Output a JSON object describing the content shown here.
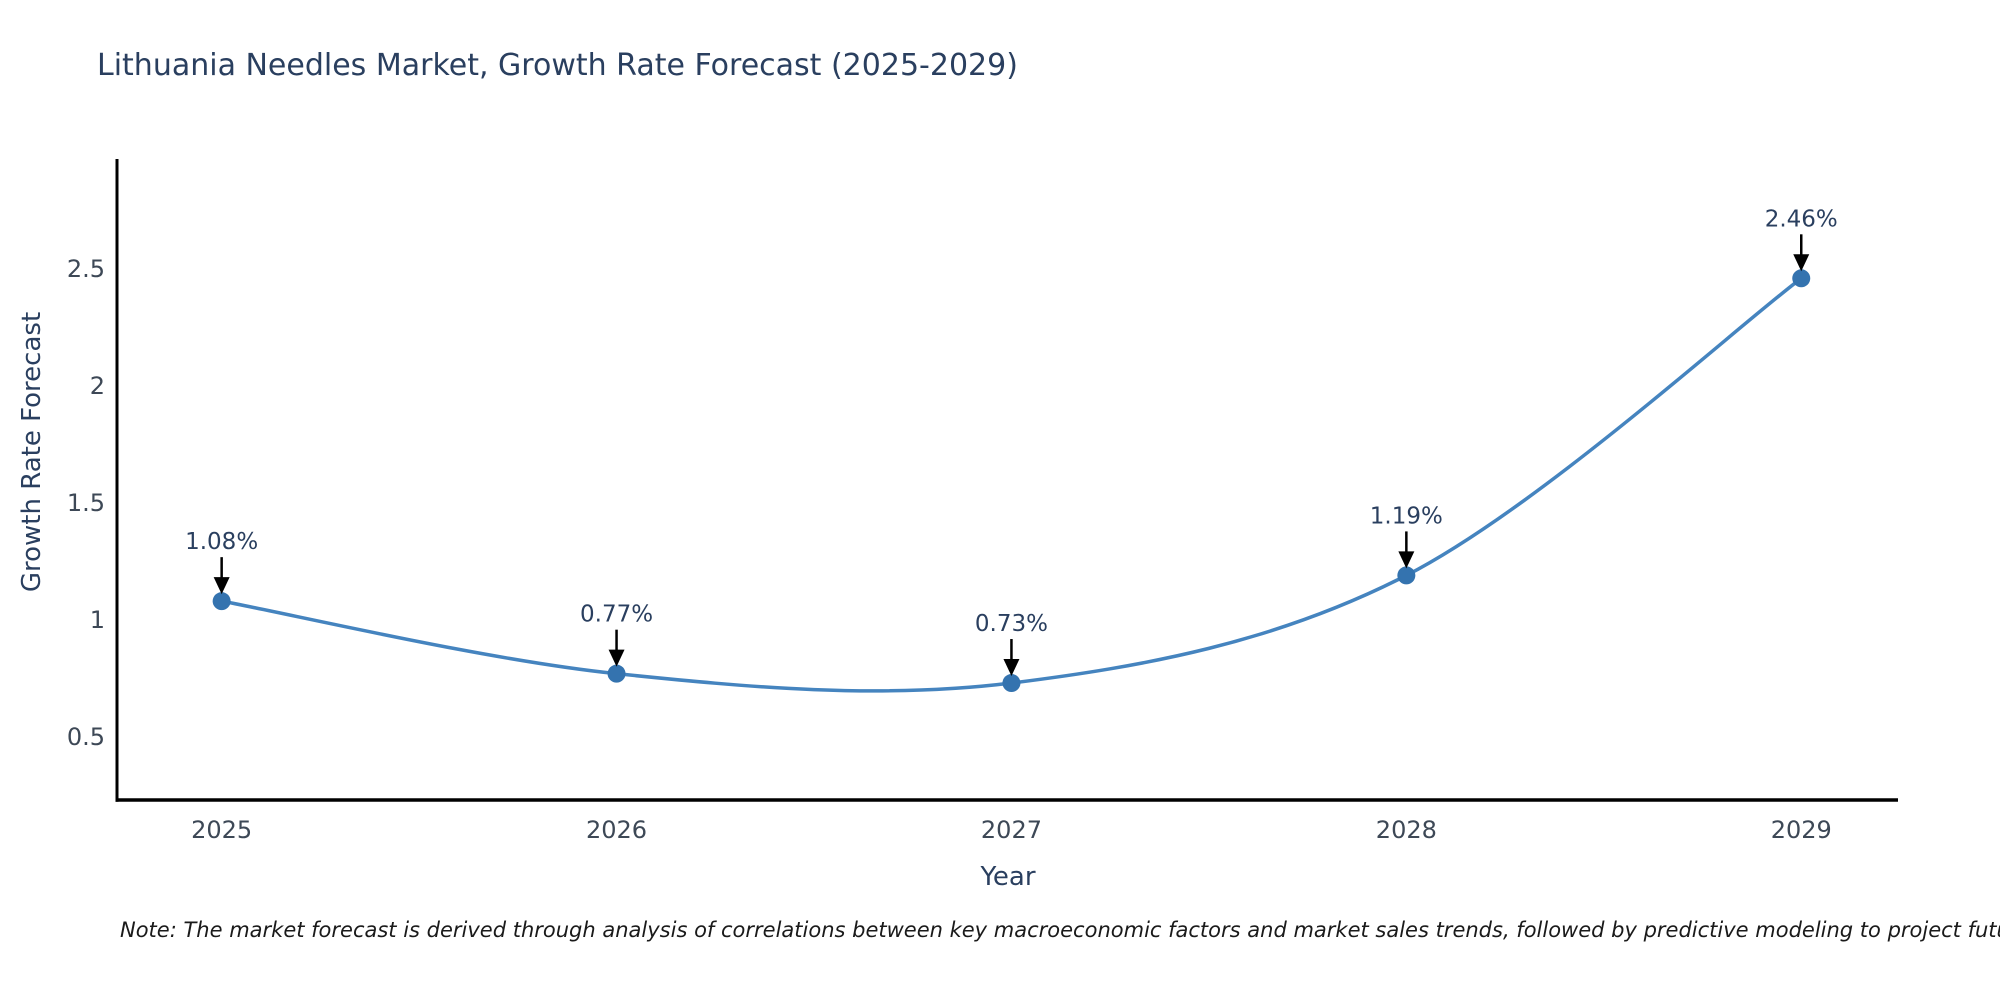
{
  "title": {
    "text": "Lithuania Needles Market, Growth Rate Forecast (2025-2029)"
  },
  "note": {
    "text": "Note: The market forecast is derived through analysis of correlations between key macroeconomic factors and market sales trends, followed by predictive modeling to project future sales"
  },
  "chart_data": {
    "type": "line",
    "title": "Lithuania Needles Market, Growth Rate Forecast (2025-2029)",
    "xlabel": "Year",
    "ylabel": "Growth Rate Forecast",
    "categories": [
      "2025",
      "2026",
      "2027",
      "2028",
      "2029"
    ],
    "x": [
      2025,
      2026,
      2027,
      2028,
      2029
    ],
    "series": [
      {
        "name": "Growth Rate Forecast",
        "values": [
          1.08,
          0.77,
          0.73,
          1.19,
          2.46
        ]
      }
    ],
    "point_labels": [
      "1.08%",
      "0.77%",
      "0.73%",
      "1.19%",
      "2.46%"
    ],
    "yticks": [
      0.5,
      1,
      1.5,
      2,
      2.5
    ],
    "ytick_labels": [
      "0.5",
      "1",
      "1.5",
      "2",
      "2.5"
    ],
    "xlim": [
      2024.735,
      2029.245
    ],
    "ylim": [
      0.23,
      2.97
    ],
    "line_shape": "spline",
    "grid": false,
    "legend_position": "none",
    "colors": {
      "line": "#4584bf",
      "marker": "#3473af",
      "spine": "#000000",
      "tick_label": "#3d4856",
      "annotation_text": "#2a3f5f",
      "arrow": "#000000",
      "background": "#ffffff"
    }
  }
}
